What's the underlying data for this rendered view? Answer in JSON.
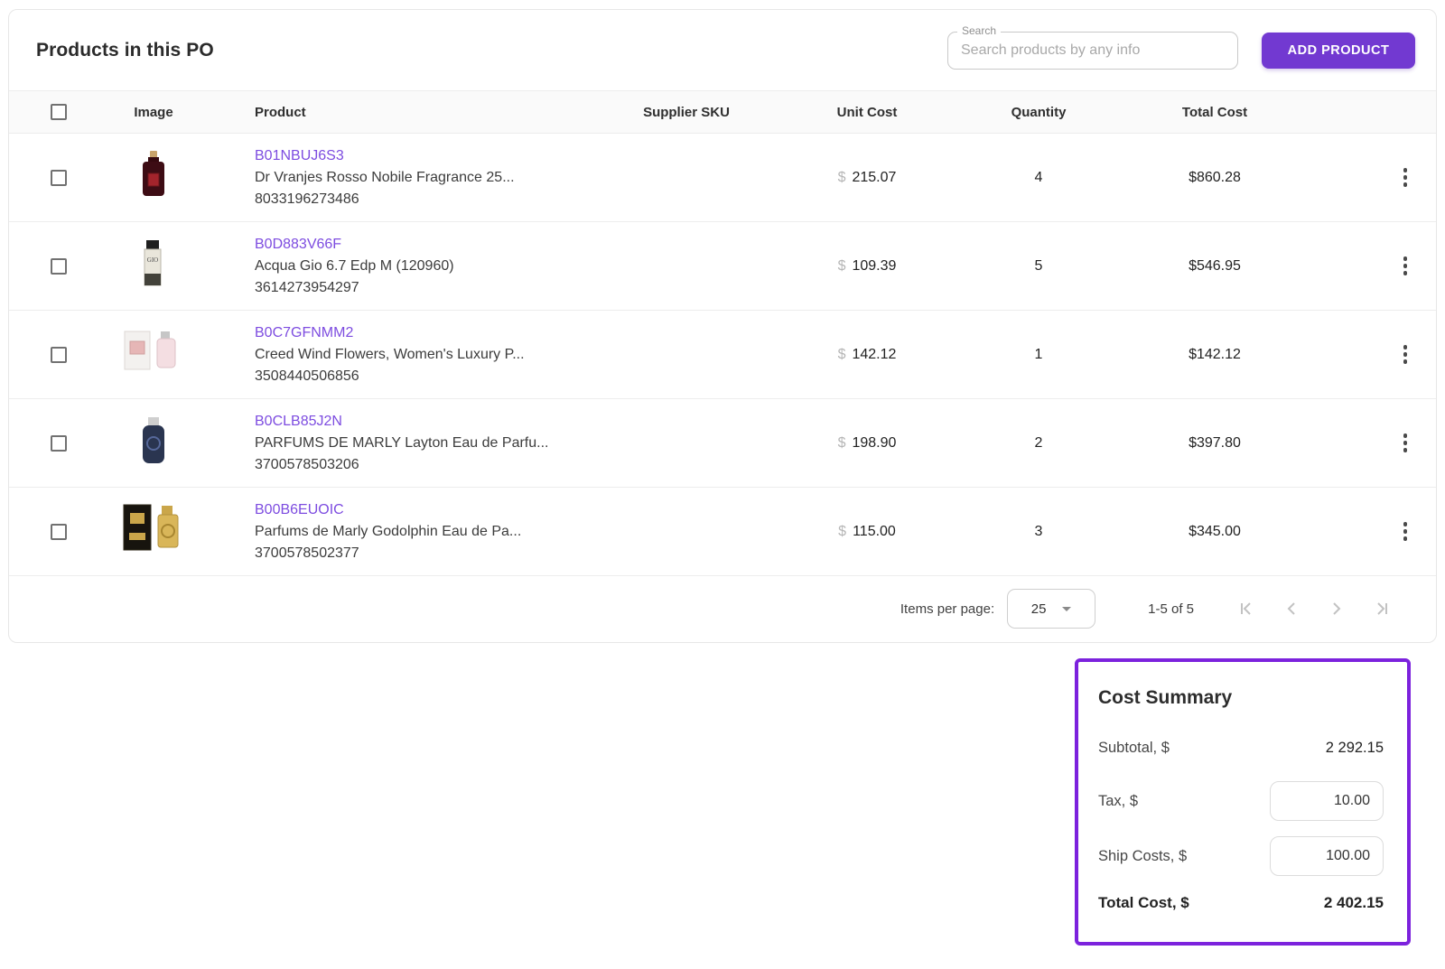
{
  "colors": {
    "accent_purple": "#7239d1",
    "link_purple": "#7d4ce0",
    "summary_border_purple": "#7c22dd"
  },
  "header": {
    "title": "Products in this PO",
    "search": {
      "label": "Search",
      "placeholder": "Search products by any info"
    },
    "add_product_label": "ADD PRODUCT"
  },
  "table": {
    "headers": {
      "image": "Image",
      "product": "Product",
      "supplier_sku": "Supplier SKU",
      "unit_cost": "Unit Cost",
      "quantity": "Quantity",
      "total_cost": "Total Cost"
    },
    "rows": [
      {
        "code": "B01NBUJ6S3",
        "name": "Dr Vranjes Rosso Nobile Fragrance 25...",
        "barcode": "8033196273486",
        "currency": "$",
        "unit_cost": "215.07",
        "quantity": "4",
        "total_cost": "$860.28",
        "image": "rosso-nobile-diffuser-bottle"
      },
      {
        "code": "B0D883V66F",
        "name": "Acqua Gio 6.7 Edp M (120960)",
        "barcode": "3614273954297",
        "currency": "$",
        "unit_cost": "109.39",
        "quantity": "5",
        "total_cost": "$546.95",
        "image": "acqua-gio-bottle"
      },
      {
        "code": "B0C7GFNMM2",
        "name": "Creed Wind Flowers, Women's Luxury P...",
        "barcode": "3508440506856",
        "currency": "$",
        "unit_cost": "142.12",
        "quantity": "1",
        "total_cost": "$142.12",
        "image": "creed-wind-flowers-box-and-bottle"
      },
      {
        "code": "B0CLB85J2N",
        "name": "PARFUMS DE MARLY Layton Eau de Parfu...",
        "barcode": "3700578503206",
        "currency": "$",
        "unit_cost": "198.90",
        "quantity": "2",
        "total_cost": "$397.80",
        "image": "marly-layton-bottle"
      },
      {
        "code": "B00B6EUOIC",
        "name": "Parfums de Marly Godolphin Eau de Pa...",
        "barcode": "3700578502377",
        "currency": "$",
        "unit_cost": "115.00",
        "quantity": "3",
        "total_cost": "$345.00",
        "image": "godolphin-box-and-bottle"
      }
    ]
  },
  "pagination": {
    "items_per_page_label": "Items per page:",
    "items_per_page_value": "25",
    "range_label": "1-5 of 5"
  },
  "cost_summary": {
    "title": "Cost Summary",
    "subtotal_label": "Subtotal, $",
    "subtotal_value": "2 292.15",
    "tax_label": "Tax, $",
    "tax_value": "10.00",
    "ship_label": "Ship Costs, $",
    "ship_value": "100.00",
    "total_label": "Total Cost, $",
    "total_value": "2 402.15"
  }
}
